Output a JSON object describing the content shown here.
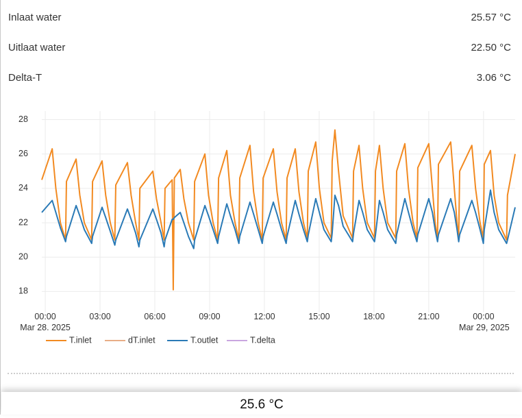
{
  "rows": [
    {
      "label": "Inlaat water",
      "value": "25.57 °C"
    },
    {
      "label": "Uitlaat water",
      "value": "22.50 °C"
    },
    {
      "label": "Delta-T",
      "value": "3.06 °C"
    }
  ],
  "chart_data": {
    "type": "line",
    "x": [
      -0.19,
      0.38,
      0.58,
      0.83,
      1.11,
      1.16,
      1.69,
      1.89,
      2.14,
      2.54,
      2.59,
      3.11,
      3.31,
      3.56,
      3.81,
      3.86,
      4.5,
      4.7,
      4.95,
      5.13,
      5.18,
      5.89,
      6.09,
      6.34,
      6.51,
      6.56,
      6.95,
      7.01,
      7.07,
      7.39,
      7.59,
      7.84,
      8.13,
      8.18,
      8.74,
      8.94,
      9.19,
      9.44,
      9.49,
      9.94,
      10.14,
      10.39,
      10.6,
      10.65,
      11.21,
      11.41,
      11.66,
      11.88,
      11.93,
      12.49,
      12.69,
      12.94,
      13.19,
      13.24,
      13.69,
      13.89,
      14.14,
      14.35,
      14.4,
      14.81,
      15.01,
      15.26,
      15.66,
      15.71,
      15.86,
      16.06,
      16.31,
      16.83,
      16.88,
      17.18,
      17.38,
      17.63,
      18.03,
      18.08,
      18.3,
      18.5,
      18.75,
      19.19,
      19.24,
      19.69,
      19.89,
      20.14,
      20.35,
      20.4,
      21.0,
      21.2,
      21.35,
      21.48,
      21.53,
      22.2,
      22.4,
      22.55,
      22.64,
      22.69,
      23.36,
      23.56,
      23.81,
      23.99,
      24.04,
      24.38,
      24.58,
      24.83,
      25.26,
      25.31,
      25.73
    ],
    "series": [
      {
        "name": "T.inlet",
        "color": "#f28a21",
        "visible": true,
        "values": [
          24.5,
          26.3,
          24.0,
          22.0,
          21.0,
          24.4,
          25.7,
          23.6,
          22.0,
          21.0,
          24.4,
          25.6,
          23.6,
          22.0,
          21.0,
          24.2,
          25.5,
          23.6,
          22.0,
          21.0,
          24.0,
          25.0,
          23.4,
          22.0,
          21.0,
          24.0,
          24.5,
          18.1,
          24.6,
          25.1,
          23.4,
          22.0,
          21.0,
          24.4,
          26.0,
          23.6,
          22.0,
          21.0,
          24.6,
          26.2,
          23.6,
          22.0,
          21.0,
          24.6,
          26.5,
          23.8,
          22.0,
          21.0,
          24.6,
          26.3,
          23.8,
          22.0,
          21.0,
          24.6,
          26.3,
          23.8,
          22.0,
          21.1,
          25.0,
          26.7,
          24.0,
          22.0,
          21.1,
          25.6,
          27.4,
          25.0,
          22.4,
          21.1,
          25.0,
          26.5,
          24.0,
          22.0,
          21.1,
          25.0,
          26.5,
          24.0,
          22.0,
          21.1,
          25.0,
          26.6,
          24.0,
          22.0,
          21.1,
          25.2,
          26.6,
          24.0,
          22.0,
          21.1,
          25.4,
          26.7,
          24.0,
          22.0,
          21.1,
          25.0,
          26.5,
          24.0,
          22.0,
          21.1,
          25.4,
          26.2,
          23.6,
          22.0,
          21.0,
          23.6,
          26.0
        ]
      },
      {
        "name": "dT.inlet",
        "color": "#e8ad86",
        "visible": false
      },
      {
        "name": "T.outlet",
        "color": "#2a7ab6",
        "visible": true,
        "values": [
          22.6,
          23.3,
          22.6,
          21.7,
          20.9,
          21.2,
          23.0,
          22.4,
          21.6,
          20.8,
          21.2,
          22.9,
          22.3,
          21.5,
          20.7,
          21.0,
          22.8,
          22.2,
          21.4,
          20.6,
          21.0,
          22.8,
          22.2,
          21.4,
          20.6,
          21.0,
          22.2,
          22.2,
          22.3,
          22.6,
          22.0,
          21.2,
          20.5,
          21.0,
          23.0,
          22.4,
          21.6,
          20.8,
          21.2,
          23.1,
          22.4,
          21.6,
          20.8,
          21.2,
          23.2,
          22.5,
          21.6,
          20.8,
          21.2,
          23.2,
          22.5,
          21.6,
          20.8,
          21.2,
          23.3,
          22.5,
          21.6,
          20.9,
          21.3,
          23.4,
          22.6,
          21.6,
          20.9,
          21.4,
          23.6,
          23.0,
          21.8,
          20.9,
          21.4,
          23.3,
          22.6,
          21.6,
          20.9,
          21.3,
          23.3,
          22.6,
          21.6,
          20.8,
          21.3,
          23.4,
          22.6,
          21.6,
          20.9,
          21.3,
          23.4,
          22.6,
          21.6,
          20.9,
          21.3,
          23.4,
          22.6,
          21.6,
          20.9,
          21.3,
          23.3,
          22.6,
          21.6,
          20.8,
          21.6,
          23.9,
          22.6,
          21.6,
          20.8,
          21.0,
          22.9
        ]
      },
      {
        "name": "T.delta",
        "color": "#c9a6e0",
        "visible": false
      }
    ],
    "xlim": [
      -0.19,
      25.73
    ],
    "xticks": [
      {
        "value": 0,
        "label": "00:00\nMar 28. 2025"
      },
      {
        "value": 3,
        "label": "03:00"
      },
      {
        "value": 6,
        "label": "06:00"
      },
      {
        "value": 9,
        "label": "09:00"
      },
      {
        "value": 12,
        "label": "12:00"
      },
      {
        "value": 15,
        "label": "15:00"
      },
      {
        "value": 18,
        "label": "18:00"
      },
      {
        "value": 21,
        "label": "21:00"
      },
      {
        "value": 24,
        "label": "00:00\nMar 29, 2025"
      }
    ],
    "ylim": [
      17.1,
      28.5
    ],
    "yticks": [
      18,
      20,
      22,
      24,
      26,
      28
    ],
    "grid": true
  },
  "footer": {
    "value": "25.6 °C"
  }
}
